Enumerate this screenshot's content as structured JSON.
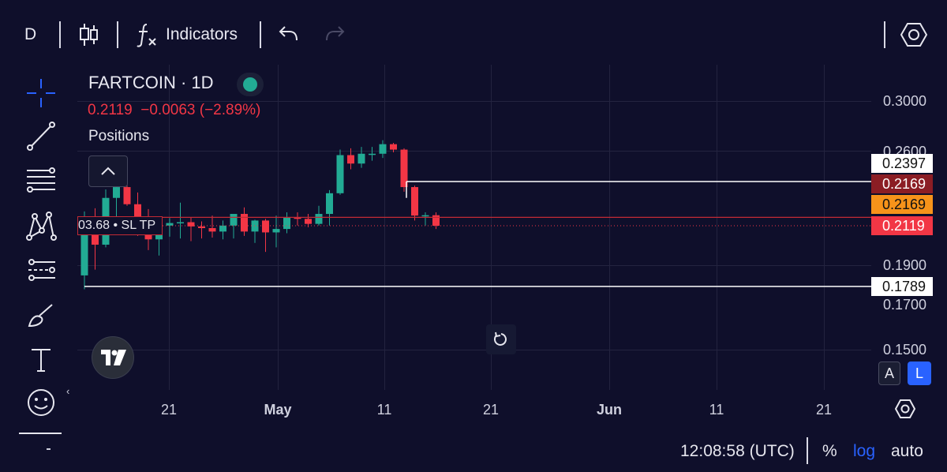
{
  "toolbar": {
    "interval": "D",
    "indicators_label": "Indicators"
  },
  "legend": {
    "symbol_title": "FARTCOIN · 1D",
    "price_line": "0.2119  −0.0063 (−2.89%)",
    "positions_label": "Positions"
  },
  "position_label": "03.68 • SL TP",
  "axes": {
    "price_ticks": [
      "0.3000",
      "0.2600",
      "0.1900",
      "0.1700",
      "0.1500"
    ],
    "date_ticks": [
      "21",
      "May",
      "11",
      "21",
      "Jun",
      "11",
      "21"
    ]
  },
  "price_tags": [
    {
      "value": "0.2397",
      "bg": "#ffffff",
      "fg": "#111111"
    },
    {
      "value": "0.2169",
      "bg": "#8b1d24",
      "fg": "#ffffff"
    },
    {
      "value": "0.2169",
      "bg": "#f7931a",
      "fg": "#111111"
    },
    {
      "value": "0.2119",
      "bg": "#f23645",
      "fg": "#ffffff"
    },
    {
      "value": "0.1789",
      "bg": "#ffffff",
      "fg": "#111111"
    }
  ],
  "scale_mode": {
    "a": "A",
    "l": "L"
  },
  "bottom": {
    "time": "12:08:58 (UTC)",
    "percent": "%",
    "log": "log",
    "auto": "auto"
  },
  "colors": {
    "background": "#0f0f2b",
    "up": "#22ab94",
    "down": "#f23645",
    "accent": "#2962ff"
  },
  "chart_data": {
    "type": "candlestick",
    "symbol": "FARTCOIN",
    "interval": "1D",
    "ylim": [
      0.14,
      0.31
    ],
    "y_ticks": [
      0.3,
      0.26,
      0.19,
      0.17,
      0.15
    ],
    "x_ticks": [
      "21",
      "May",
      "11",
      "21",
      "Jun",
      "11",
      "21"
    ],
    "candles": [
      {
        "o": 0.1845,
        "h": 0.2205,
        "l": 0.1775,
        "c": 0.214
      },
      {
        "o": 0.2135,
        "h": 0.2225,
        "l": 0.1875,
        "c": 0.201
      },
      {
        "o": 0.201,
        "h": 0.2345,
        "l": 0.1995,
        "c": 0.229
      },
      {
        "o": 0.229,
        "h": 0.241,
        "l": 0.2165,
        "c": 0.236
      },
      {
        "o": 0.236,
        "h": 0.241,
        "l": 0.224,
        "c": 0.225
      },
      {
        "o": 0.225,
        "h": 0.2325,
        "l": 0.206,
        "c": 0.211
      },
      {
        "o": 0.211,
        "h": 0.222,
        "l": 0.198,
        "c": 0.204
      },
      {
        "o": 0.204,
        "h": 0.215,
        "l": 0.195,
        "c": 0.212
      },
      {
        "o": 0.212,
        "h": 0.2165,
        "l": 0.2055,
        "c": 0.2135
      },
      {
        "o": 0.2135,
        "h": 0.226,
        "l": 0.2045,
        "c": 0.214
      },
      {
        "o": 0.214,
        "h": 0.217,
        "l": 0.203,
        "c": 0.2115
      },
      {
        "o": 0.2115,
        "h": 0.2145,
        "l": 0.2045,
        "c": 0.2105
      },
      {
        "o": 0.2105,
        "h": 0.218,
        "l": 0.205,
        "c": 0.2085
      },
      {
        "o": 0.2085,
        "h": 0.215,
        "l": 0.204,
        "c": 0.212
      },
      {
        "o": 0.212,
        "h": 0.218,
        "l": 0.2045,
        "c": 0.219
      },
      {
        "o": 0.219,
        "h": 0.223,
        "l": 0.206,
        "c": 0.2085
      },
      {
        "o": 0.2085,
        "h": 0.2155,
        "l": 0.202,
        "c": 0.215
      },
      {
        "o": 0.215,
        "h": 0.216,
        "l": 0.197,
        "c": 0.208
      },
      {
        "o": 0.208,
        "h": 0.218,
        "l": 0.1995,
        "c": 0.21
      },
      {
        "o": 0.21,
        "h": 0.22,
        "l": 0.2075,
        "c": 0.217
      },
      {
        "o": 0.217,
        "h": 0.22,
        "l": 0.212,
        "c": 0.216
      },
      {
        "o": 0.216,
        "h": 0.219,
        "l": 0.211,
        "c": 0.213
      },
      {
        "o": 0.213,
        "h": 0.224,
        "l": 0.212,
        "c": 0.219
      },
      {
        "o": 0.219,
        "h": 0.234,
        "l": 0.212,
        "c": 0.232
      },
      {
        "o": 0.232,
        "h": 0.262,
        "l": 0.231,
        "c": 0.258
      },
      {
        "o": 0.258,
        "h": 0.263,
        "l": 0.248,
        "c": 0.252
      },
      {
        "o": 0.252,
        "h": 0.264,
        "l": 0.249,
        "c": 0.259
      },
      {
        "o": 0.259,
        "h": 0.264,
        "l": 0.254,
        "c": 0.259
      },
      {
        "o": 0.259,
        "h": 0.269,
        "l": 0.256,
        "c": 0.266
      },
      {
        "o": 0.266,
        "h": 0.267,
        "l": 0.26,
        "c": 0.262
      },
      {
        "o": 0.262,
        "h": 0.263,
        "l": 0.233,
        "c": 0.236
      },
      {
        "o": 0.236,
        "h": 0.237,
        "l": 0.215,
        "c": 0.218
      },
      {
        "o": 0.218,
        "h": 0.22,
        "l": 0.212,
        "c": 0.2182
      },
      {
        "o": 0.2182,
        "h": 0.22,
        "l": 0.21,
        "c": 0.2119
      }
    ],
    "horizontal_lines": [
      0.2397,
      0.2169,
      0.2169,
      0.2119,
      0.1789
    ]
  }
}
